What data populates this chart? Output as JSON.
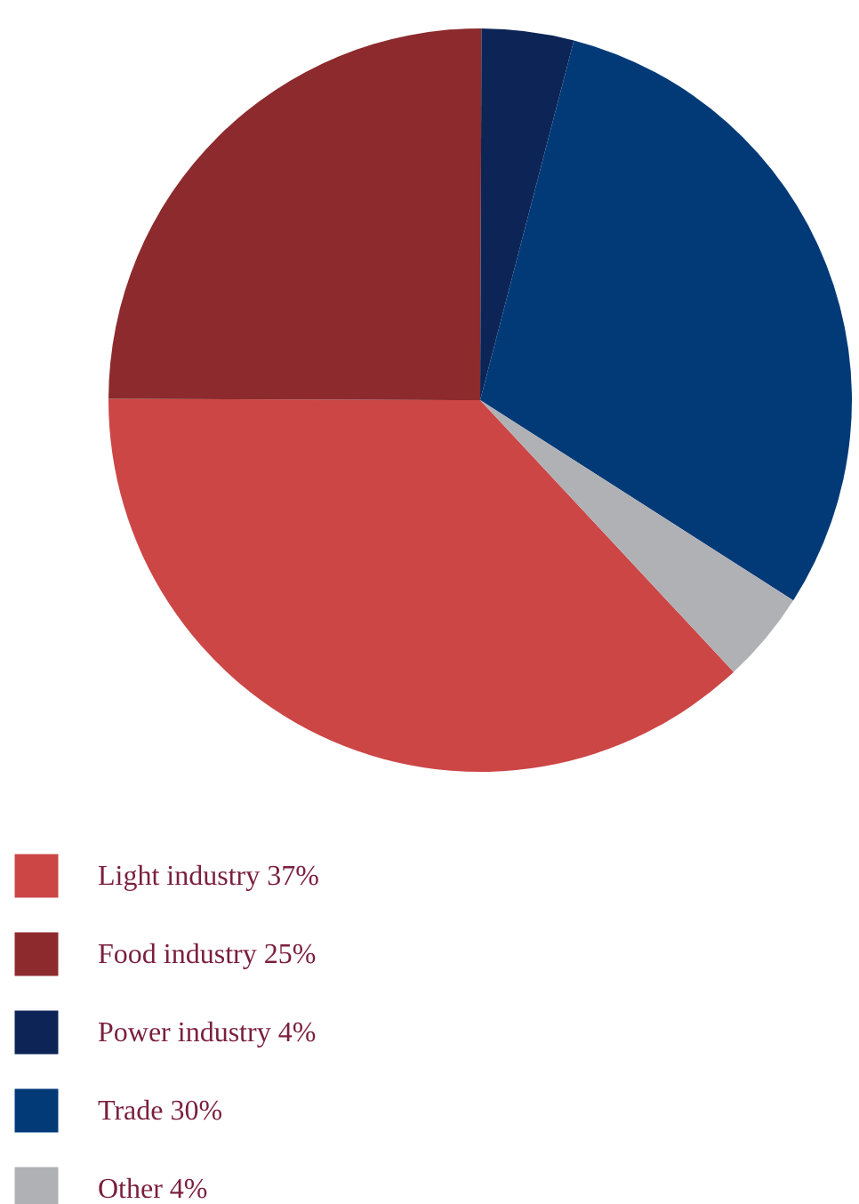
{
  "chart_data": {
    "type": "pie",
    "categories": [
      "Light industry 37%",
      "Food industry 25%",
      "Power industry 4%",
      "Trade 30%",
      "Other 4%"
    ],
    "values": [
      37,
      25,
      4,
      30,
      4
    ],
    "colors": [
      "#cc4646",
      "#8c2a2d",
      "#0c2556",
      "#023a78",
      "#b0b1b5"
    ],
    "legend": "bottom left"
  }
}
